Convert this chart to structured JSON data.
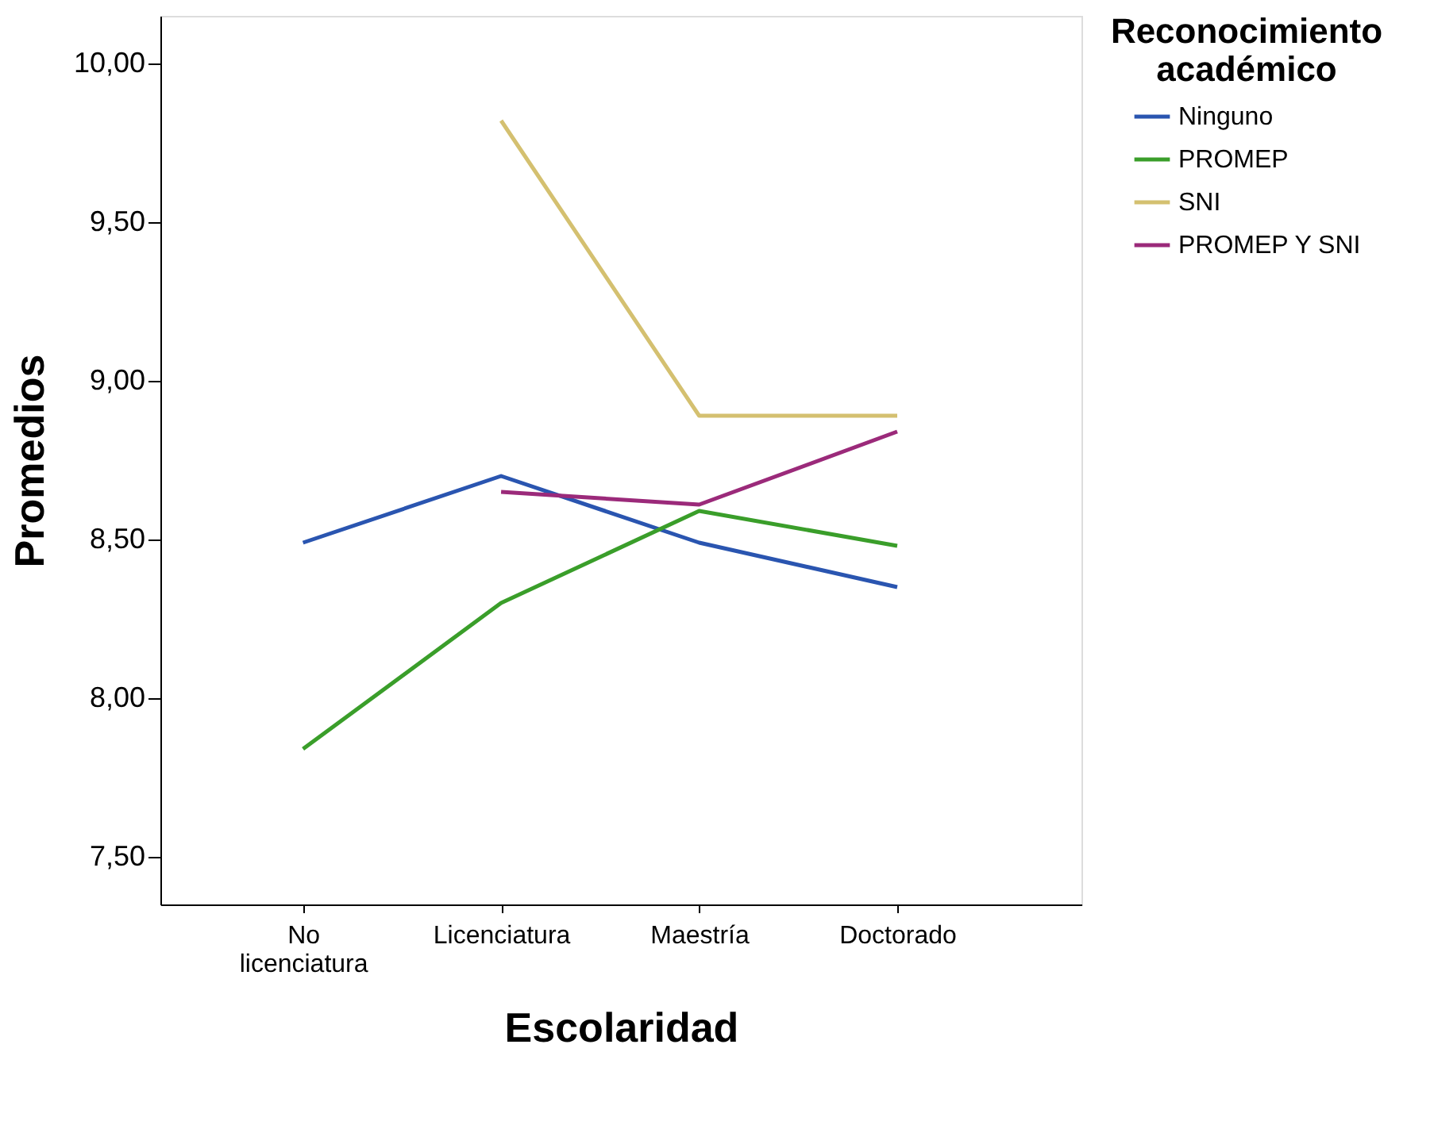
{
  "chart_data": {
    "type": "line",
    "xlabel": "Escolaridad",
    "ylabel": "Promedios",
    "legend_title": "Reconocimiento académico",
    "legend": "top right",
    "grid": false,
    "marker": "none",
    "line_style": "solid",
    "categories": [
      "No licenciatura",
      "Licenciatura",
      "Maestría",
      "Doctorado"
    ],
    "ylim": [
      7.35,
      10.15
    ],
    "yticks": [
      {
        "value": 7.5,
        "label": "7,50"
      },
      {
        "value": 8,
        "label": "8,00"
      },
      {
        "value": 8.5,
        "label": "8,50"
      },
      {
        "value": 9,
        "label": "9,00"
      },
      {
        "value": 9.5,
        "label": "9,50"
      },
      {
        "value": 10,
        "label": "10,00"
      }
    ],
    "series": [
      {
        "name": "Ninguno",
        "color": "#2a55b0",
        "values": [
          8.49,
          8.7,
          8.49,
          8.35
        ]
      },
      {
        "name": "PROMEP",
        "color": "#3a9e2a",
        "values": [
          7.84,
          8.3,
          8.59,
          8.48
        ]
      },
      {
        "name": "SNI",
        "color": "#d4c070",
        "values": [
          null,
          9.82,
          8.89,
          8.89
        ]
      },
      {
        "name": "PROMEP Y SNI",
        "color": "#9b2a7a",
        "values": [
          null,
          8.65,
          8.61,
          8.84
        ]
      }
    ]
  }
}
